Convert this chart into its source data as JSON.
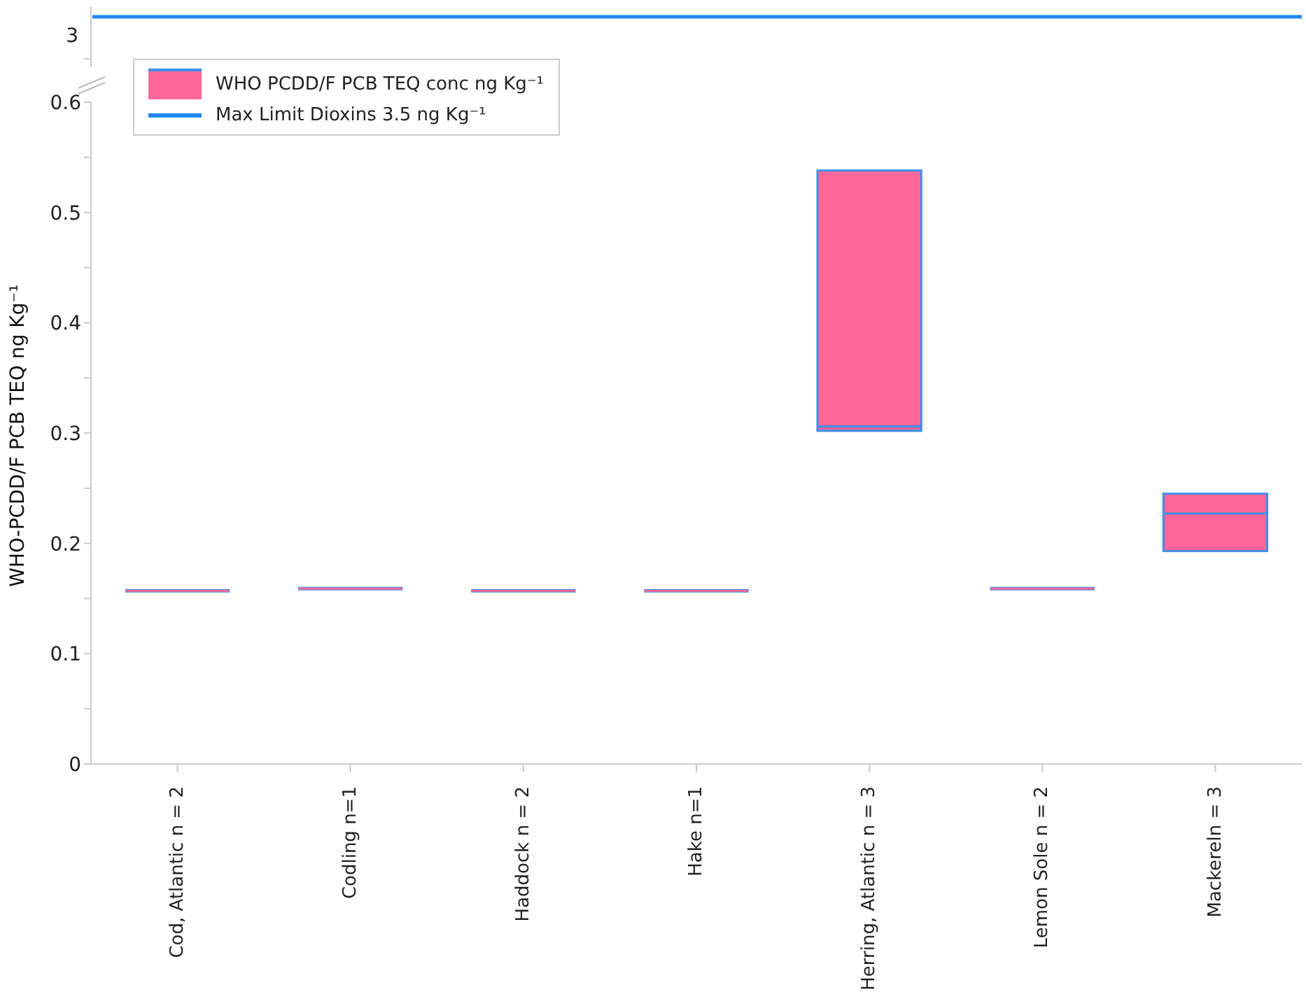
{
  "chart_data": [
    {
      "type": "other",
      "annotations": [
        "3"
      ],
      "series": [
        {
          "name": "Max Limit Dioxins 3.5 ng Kg⁻¹",
          "color": "#1e88f0"
        }
      ]
    },
    {
      "type": "box",
      "categories": [
        "Cod, Atlantic n = 2",
        "Codling n=1",
        "Haddock n = 2",
        "Hake n=1",
        "Herring, Atlantic n = 3",
        "Lemon Sole n = 2",
        "Mackereln = 3"
      ],
      "ylabel": "WHO-PCDD/F PCB TEQ ng Kg⁻¹",
      "ylim": [
        0,
        0.6
      ],
      "yticks": [
        0,
        {
          "value": 0.05,
          "label": null
        },
        0.1,
        {
          "value": 0.15,
          "label": null
        },
        0.2,
        {
          "value": 0.25,
          "label": null
        },
        0.3,
        {
          "value": 0.35,
          "label": null
        },
        0.4,
        {
          "value": 0.45,
          "label": null
        },
        0.5,
        {
          "value": 0.55,
          "label": null
        },
        0.6
      ],
      "legend": "top left",
      "series": [
        {
          "name": "WHO PCDD/F PCB TEQ conc ng Kg⁻¹",
          "color": "#ff6699",
          "boxes": [
            {
              "low": 0.157,
              "q1": 0.157,
              "median": 0.157,
              "q3": 0.157,
              "high": 0.157
            },
            {
              "low": 0.159,
              "q1": 0.159,
              "median": 0.159,
              "q3": 0.159,
              "high": 0.159
            },
            {
              "low": 0.157,
              "q1": 0.157,
              "median": 0.157,
              "q3": 0.157,
              "high": 0.157
            },
            {
              "low": 0.157,
              "q1": 0.157,
              "median": 0.157,
              "q3": 0.157,
              "high": 0.157
            },
            {
              "low": 0.302,
              "q1": 0.302,
              "median": 0.306,
              "q3": 0.538,
              "high": 0.538
            },
            {
              "low": 0.158,
              "q1": 0.158,
              "median": 0.159,
              "q3": 0.16,
              "high": 0.16
            },
            {
              "low": 0.193,
              "q1": 0.193,
              "median": 0.227,
              "q3": 0.245,
              "high": 0.245
            }
          ]
        }
      ]
    }
  ]
}
